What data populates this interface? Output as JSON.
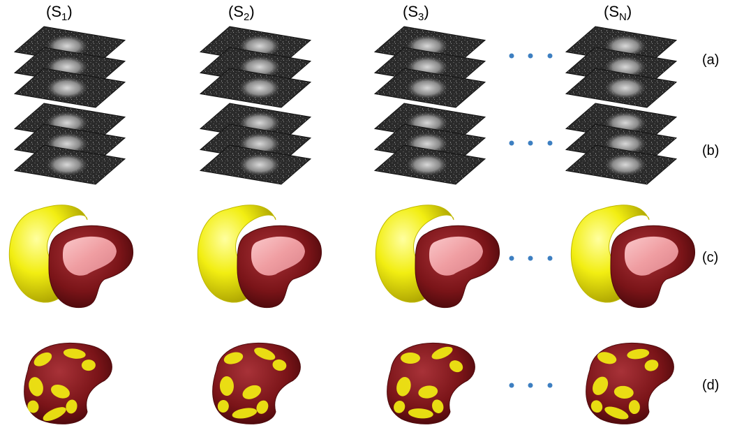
{
  "columns": [
    {
      "title": "S",
      "sub": "1"
    },
    {
      "title": "S",
      "sub": "2"
    },
    {
      "title": "S",
      "sub": "3"
    },
    {
      "title": "S",
      "sub": "N"
    }
  ],
  "rows": [
    "(a)",
    "(b)",
    "(c)",
    "(d)"
  ],
  "ellipsis_glyph": "• • •",
  "colors": {
    "mri_dark": "#1c1c1c",
    "mri_mid": "#6a6a6a",
    "mri_light": "#c8c8c8",
    "yellow": "#f2ee12",
    "yellow_dark": "#bfb800",
    "maroon": "#7a1418",
    "maroon_dark": "#4e0a0c",
    "pink": "#f4a4a8",
    "dots": "#3d7fc1"
  },
  "icons": {
    "mri_stack": "mri-slice-stack-icon",
    "segmentation": "3d-kidney-segmentation-icon",
    "atlas_overlap": "kidney-atlas-overlap-icon",
    "ellipsis": "horizontal-ellipsis-icon"
  }
}
